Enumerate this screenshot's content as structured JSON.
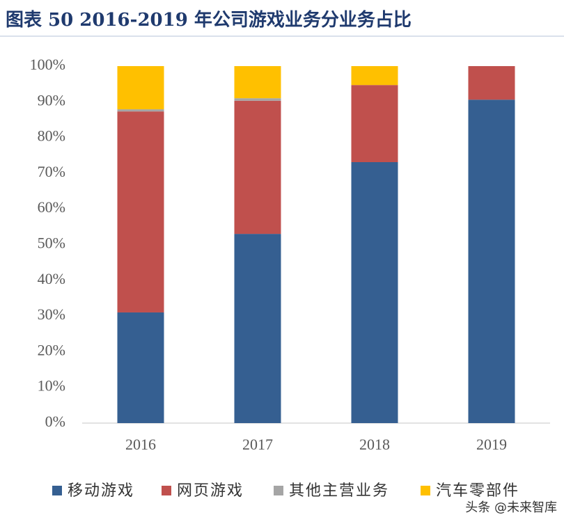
{
  "chart_data": {
    "type": "stacked_bar",
    "title": "图表 50 2016-2019 年公司游戏业务分业务占比",
    "categories": [
      "2016",
      "2017",
      "2018",
      "2019"
    ],
    "series": [
      {
        "name": "移动游戏",
        "color": "#355f91",
        "values": [
          31.0,
          53.0,
          73.1,
          90.6
        ]
      },
      {
        "name": "网页游戏",
        "color": "#c0504d",
        "values": [
          56.3,
          37.3,
          21.6,
          9.4
        ]
      },
      {
        "name": "其他主营业务",
        "color": "#a5a5a5",
        "values": [
          0.6,
          0.7,
          0,
          0
        ]
      },
      {
        "name": "汽车零部件",
        "color": "#ffc000",
        "values": [
          12.1,
          9.0,
          5.3,
          0
        ]
      }
    ],
    "ylim": [
      0,
      100
    ],
    "yticks": [
      {
        "value": 0,
        "label": "0%"
      },
      {
        "value": 10,
        "label": "10%"
      },
      {
        "value": 20,
        "label": "20%"
      },
      {
        "value": 30,
        "label": "30%"
      },
      {
        "value": 40,
        "label": "40%"
      },
      {
        "value": 50,
        "label": "50%"
      },
      {
        "value": 60,
        "label": "60%"
      },
      {
        "value": 70,
        "label": "70%"
      },
      {
        "value": 80,
        "label": "80%"
      },
      {
        "value": 90,
        "label": "90%"
      },
      {
        "value": 100,
        "label": "100%"
      }
    ],
    "grid": false,
    "watermark": "头条 @未来智库"
  }
}
